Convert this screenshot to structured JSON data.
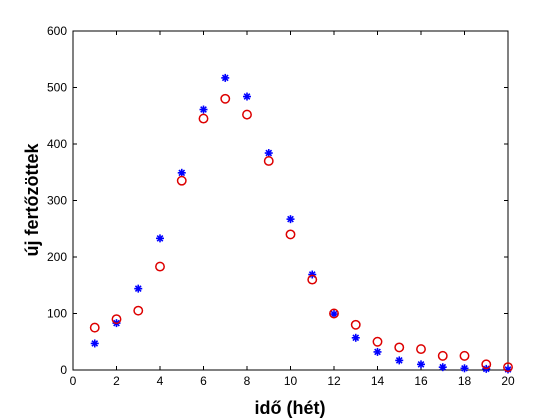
{
  "chart_data": {
    "type": "scatter",
    "title": "",
    "xlabel": "idő (hét)",
    "ylabel": "új fertőzöttek",
    "xlim": [
      0,
      20
    ],
    "ylim": [
      0,
      600
    ],
    "xticks": [
      0,
      2,
      4,
      6,
      8,
      10,
      12,
      14,
      16,
      18,
      20
    ],
    "yticks": [
      0,
      100,
      200,
      300,
      400,
      500,
      600
    ],
    "grid": false,
    "series": [
      {
        "marker": "asterisk",
        "color": "#0000ff",
        "x": [
          1,
          2,
          3,
          4,
          5,
          6,
          7,
          8,
          9,
          10,
          11,
          12,
          13,
          14,
          15,
          16,
          17,
          18,
          19,
          20
        ],
        "y": [
          47,
          83,
          144,
          233,
          349,
          461,
          517,
          484,
          384,
          267,
          169,
          99,
          57,
          32,
          17,
          10,
          5,
          3,
          2,
          1
        ]
      },
      {
        "marker": "circle",
        "color": "#dd0000",
        "x": [
          1,
          2,
          3,
          4,
          5,
          6,
          7,
          8,
          9,
          10,
          11,
          12,
          13,
          14,
          15,
          16,
          17,
          18,
          19,
          20
        ],
        "y": [
          75,
          90,
          105,
          183,
          335,
          445,
          480,
          452,
          370,
          240,
          160,
          100,
          80,
          50,
          40,
          37,
          25,
          25,
          10,
          5
        ]
      }
    ]
  }
}
